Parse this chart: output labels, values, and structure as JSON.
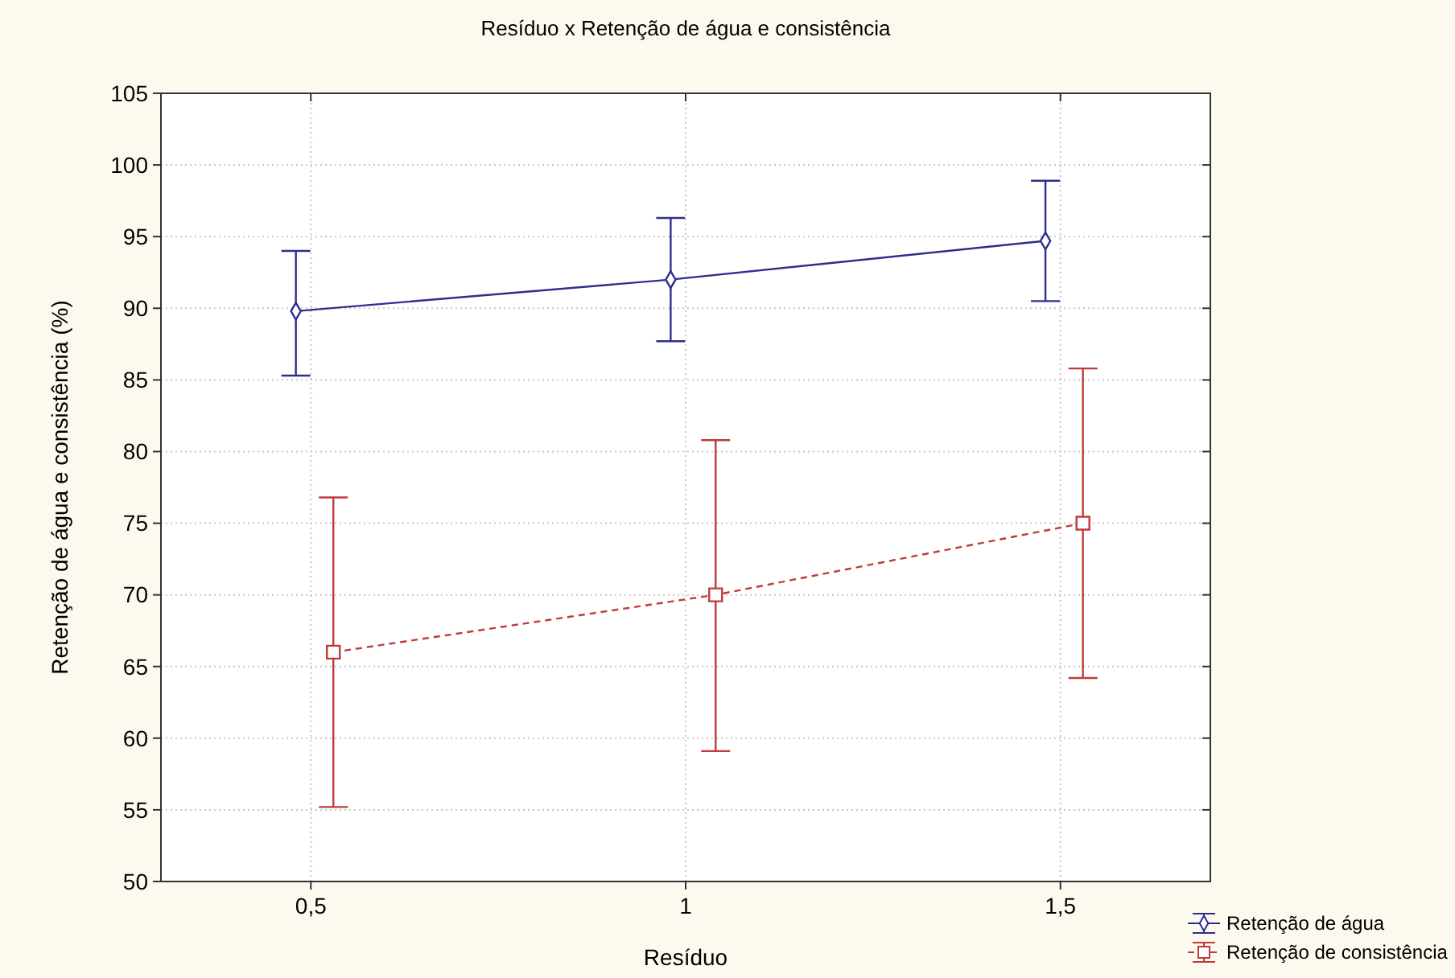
{
  "chart_data": {
    "type": "line",
    "title": "Resíduo x Retenção de água e consistência",
    "xlabel": "Resíduo",
    "ylabel": "Retenção de água e consistência (%)",
    "xlim": [
      0.3,
      1.7
    ],
    "xticks": [
      {
        "value": 0.5,
        "label": "0,5"
      },
      1,
      {
        "value": 1.5,
        "label": "1,5"
      }
    ],
    "ylim": [
      50,
      105
    ],
    "yticks": [
      50,
      55,
      60,
      65,
      70,
      75,
      80,
      85,
      90,
      95,
      100,
      105
    ],
    "grid": true,
    "legend": "bottom right",
    "series": [
      {
        "name": "Retenção de água",
        "color": "#2e2e8c",
        "x": [
          0.48,
          0.98,
          1.48
        ],
        "values": [
          89.8,
          92.0,
          94.7
        ],
        "errors": [
          [
            85.3,
            94.0
          ],
          [
            87.7,
            96.3
          ],
          [
            90.5,
            98.9
          ]
        ],
        "marker": "diamond",
        "line_style": "solid"
      },
      {
        "name": "Retenção de consistência",
        "color": "#c03a3a",
        "x": [
          0.53,
          1.04,
          1.53
        ],
        "values": [
          66.0,
          70.0,
          75.0
        ],
        "errors": [
          [
            55.2,
            76.8
          ],
          [
            59.1,
            80.8
          ],
          [
            64.2,
            85.8
          ]
        ],
        "marker": "square",
        "line_style": "dashed"
      }
    ]
  }
}
